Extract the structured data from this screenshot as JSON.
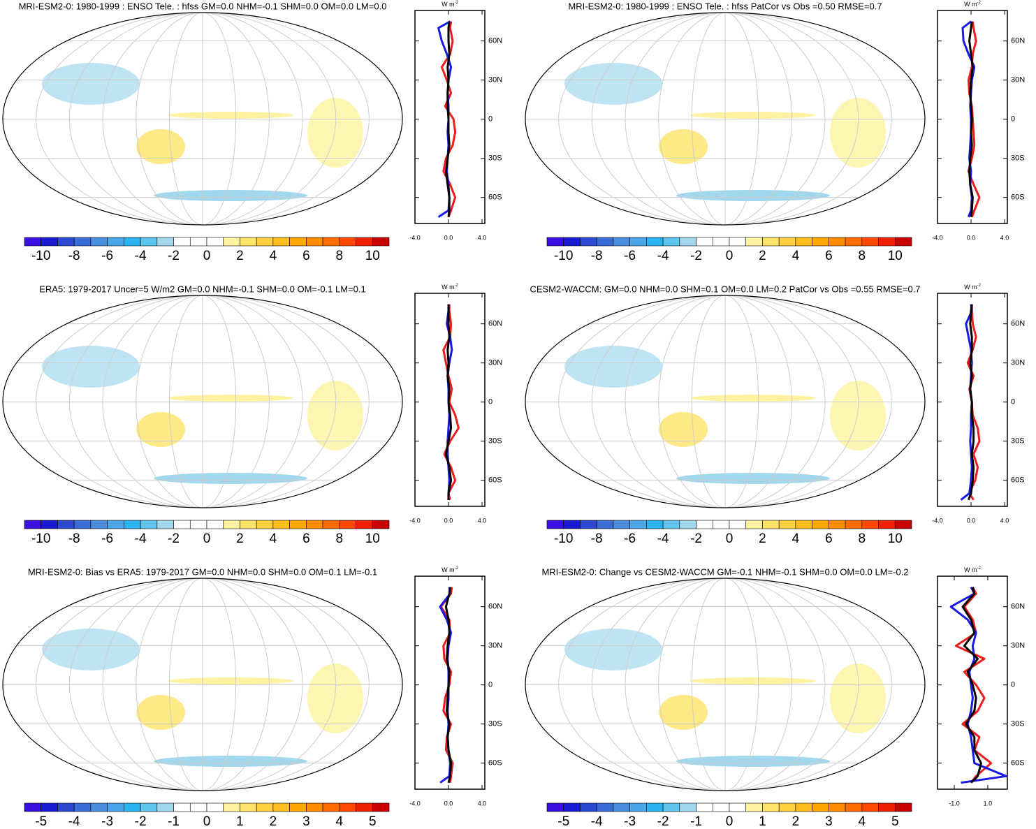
{
  "chart_data": [
    {
      "type": "map",
      "title": "MRI-ESM2-0: 1980-1999 : ENSO Tele. : hfss GM=0.0 NHM=-0.1 SHM=0.0 OM=0.0 LM=0.0",
      "colorbar": {
        "lim": [
          -11,
          11
        ],
        "ticks": [
          -10,
          -8,
          -6,
          -4,
          -2,
          0,
          2,
          4,
          6,
          8,
          10
        ]
      },
      "zonal": {
        "type": "line",
        "units": "W m",
        "units_exp": "-2",
        "xlim": [
          -4,
          4.33
        ],
        "ylim": [
          -80,
          83.4
        ],
        "xticks": [
          {
            "value": -4,
            "label": "-4.0"
          },
          {
            "value": 0,
            "label": "0.0"
          },
          {
            "value": 4,
            "label": "4.0"
          }
        ],
        "yticks": [
          {
            "value": 60,
            "label": "60N"
          },
          {
            "value": 30,
            "label": "30N"
          },
          {
            "value": 0,
            "label": "0"
          },
          {
            "value": -30,
            "label": "30S"
          },
          {
            "value": -60,
            "label": "60S"
          }
        ],
        "lat": [
          -75,
          -70,
          -60,
          -50,
          -40,
          -30,
          -20,
          -10,
          0,
          10,
          20,
          30,
          40,
          50,
          60,
          70,
          75
        ],
        "series": [
          {
            "color": "#ee1c1c",
            "values": [
              0,
              0.3,
              0.8,
              0.2,
              -0.6,
              -0.3,
              0.5,
              0.8,
              0.6,
              -0.4,
              0.3,
              -0.2,
              -0.8,
              0.2,
              0.5,
              0.2,
              0.3
            ]
          },
          {
            "color": "#1a1ae6",
            "values": [
              -1.2,
              0,
              0.1,
              0,
              -0.2,
              -0.1,
              0,
              -0.1,
              0,
              0,
              -0.1,
              0,
              0.3,
              -0.2,
              -0.8,
              -1.2,
              0.2
            ]
          },
          {
            "color": "#000000",
            "values": [
              0,
              0.1,
              0.1,
              -0.1,
              -0.3,
              -0.1,
              0.1,
              0,
              0,
              -0.1,
              -0.1,
              0,
              -0.1,
              0.1,
              0,
              0,
              0.1
            ]
          }
        ]
      }
    },
    {
      "type": "map",
      "title": "MRI-ESM2-0: 1980-1999 : ENSO Tele. : hfss PatCor vs Obs =0.50 RMSE=0.7",
      "colorbar": {
        "lim": [
          -11,
          11
        ],
        "ticks": [
          -10,
          -8,
          -6,
          -4,
          -2,
          0,
          2,
          4,
          6,
          8,
          10
        ]
      },
      "zonal": {
        "type": "line",
        "units": "W m",
        "units_exp": "-2",
        "xlim": [
          -4,
          4.33
        ],
        "ylim": [
          -80,
          83.4
        ],
        "xticks": [
          {
            "value": -4,
            "label": "-4.0"
          },
          {
            "value": 0,
            "label": "0.0"
          },
          {
            "value": 4,
            "label": "4.0"
          }
        ],
        "yticks": [
          {
            "value": 60,
            "label": "60N"
          },
          {
            "value": 30,
            "label": "30N"
          },
          {
            "value": 0,
            "label": "0"
          },
          {
            "value": -30,
            "label": "30S"
          },
          {
            "value": -60,
            "label": "60S"
          }
        ],
        "lat": [
          -75,
          -70,
          -60,
          -50,
          -40,
          -30,
          -20,
          -10,
          0,
          10,
          20,
          30,
          40,
          50,
          60,
          70,
          75
        ],
        "series": [
          {
            "color": "#ee1c1c",
            "values": [
              0.1,
              0.4,
              1.0,
              0.3,
              -0.3,
              0.1,
              0.4,
              0.3,
              0.2,
              0.1,
              -0.2,
              -0.3,
              0.1,
              0.2,
              0.6,
              0.3,
              0.2
            ]
          },
          {
            "color": "#1a1ae6",
            "values": [
              -0.3,
              0,
              0.1,
              -0.1,
              0,
              -0.2,
              -0.1,
              0,
              0,
              -0.1,
              0,
              0.1,
              0.4,
              -0.3,
              -0.9,
              -1.0,
              0
            ]
          },
          {
            "color": "#000000",
            "values": [
              0,
              0.1,
              0.2,
              -0.1,
              -0.2,
              -0.1,
              0.1,
              0,
              0.1,
              0,
              -0.1,
              0,
              0.2,
              0,
              -0.2,
              0,
              0.1
            ]
          }
        ]
      }
    },
    {
      "type": "map",
      "title": "ERA5: 1979-2017 Uncer=5 W/m2 GM=0.0 NHM=-0.1 SHM=0.0 OM=-0.1 LM=0.1",
      "colorbar": {
        "lim": [
          -11,
          11
        ],
        "ticks": [
          -10,
          -8,
          -6,
          -4,
          -2,
          0,
          2,
          4,
          6,
          8,
          10
        ]
      },
      "zonal": {
        "type": "line",
        "units": "W m",
        "units_exp": "-2",
        "xlim": [
          -4,
          4.33
        ],
        "ylim": [
          -80,
          83.4
        ],
        "xticks": [
          {
            "value": -4,
            "label": "-4.0"
          },
          {
            "value": 0,
            "label": "0.0"
          },
          {
            "value": 4,
            "label": "4.0"
          }
        ],
        "yticks": [
          {
            "value": 60,
            "label": "60N"
          },
          {
            "value": 30,
            "label": "30N"
          },
          {
            "value": 0,
            "label": "0"
          },
          {
            "value": -30,
            "label": "30S"
          },
          {
            "value": -60,
            "label": "60S"
          }
        ],
        "lat": [
          -75,
          -70,
          -60,
          -50,
          -40,
          -30,
          -20,
          -10,
          0,
          10,
          20,
          30,
          40,
          50,
          60,
          70,
          75
        ],
        "series": [
          {
            "color": "#ee1c1c",
            "values": [
              0.2,
              0,
              0.8,
              0.3,
              -0.5,
              0.2,
              1.2,
              0.8,
              0.1,
              0.4,
              0,
              -0.3,
              -0.6,
              0.2,
              0.3,
              0.1,
              0.1
            ]
          },
          {
            "color": "#1a1ae6",
            "values": [
              0,
              0,
              0.1,
              0,
              -0.1,
              -0.1,
              0,
              0.1,
              0,
              0,
              -0.1,
              0.1,
              0.4,
              0.2,
              -0.2,
              0,
              0
            ]
          },
          {
            "color": "#000000",
            "values": [
              0,
              0,
              0.3,
              0.1,
              -0.3,
              0,
              0.3,
              0.2,
              0,
              0.1,
              -0.1,
              0,
              -0.1,
              0.1,
              0,
              0,
              0
            ]
          }
        ]
      }
    },
    {
      "type": "map",
      "title": "CESM2-WACCM: GM=0.0 NHM=0.0 SHM=0.1 OM=0.0 LM=0.2 PatCor vs Obs =0.55 RMSE=0.7",
      "colorbar": {
        "lim": [
          -11,
          11
        ],
        "ticks": [
          -10,
          -8,
          -6,
          -4,
          -2,
          0,
          2,
          4,
          6,
          8,
          10
        ]
      },
      "zonal": {
        "type": "line",
        "units": "W m",
        "units_exp": "-2",
        "xlim": [
          -4,
          4.33
        ],
        "ylim": [
          -80,
          83.4
        ],
        "xticks": [
          {
            "value": -4,
            "label": "-4.0"
          },
          {
            "value": 0,
            "label": "0.0"
          },
          {
            "value": 4,
            "label": "4.0"
          }
        ],
        "yticks": [
          {
            "value": 60,
            "label": "60N"
          },
          {
            "value": 30,
            "label": "30N"
          },
          {
            "value": 0,
            "label": "0"
          },
          {
            "value": -30,
            "label": "30S"
          },
          {
            "value": -60,
            "label": "60S"
          }
        ],
        "lat": [
          -75,
          -70,
          -60,
          -50,
          -40,
          -30,
          -20,
          -10,
          0,
          10,
          20,
          30,
          40,
          50,
          60,
          70,
          75
        ],
        "series": [
          {
            "color": "#ee1c1c",
            "values": [
              0.3,
              -0.2,
              0.5,
              0.8,
              0.3,
              1.0,
              0.8,
              0.2,
              0.1,
              -0.2,
              0.3,
              -0.4,
              0.2,
              0.6,
              0.2,
              0.1,
              0.1
            ]
          },
          {
            "color": "#1a1ae6",
            "values": [
              -1.2,
              -0.2,
              0,
              0.1,
              0,
              -0.1,
              0,
              0,
              0.1,
              -0.1,
              0,
              0.1,
              0,
              -0.3,
              -0.6,
              0.1,
              0
            ]
          },
          {
            "color": "#000000",
            "values": [
              -0.3,
              0,
              0.2,
              0.3,
              0.1,
              0.3,
              0.3,
              0.1,
              0.1,
              -0.1,
              0.1,
              -0.1,
              0.1,
              0.1,
              -0.1,
              0,
              0.1
            ]
          }
        ]
      }
    },
    {
      "type": "map",
      "title": "MRI-ESM2-0: Bias vs ERA5: 1979-2017 GM=0.0 NHM=0.0 SHM=0.0 OM=0.1 LM=-0.1",
      "colorbar": {
        "lim": [
          -5.5,
          5.5
        ],
        "ticks": [
          -5,
          -4,
          -3,
          -2,
          -1,
          0,
          1,
          2,
          3,
          4,
          5
        ]
      },
      "zonal": {
        "type": "line",
        "units": "W m",
        "units_exp": "-2",
        "xlim": [
          -4,
          4.33
        ],
        "ylim": [
          -80,
          83.4
        ],
        "xticks": [
          {
            "value": -4,
            "label": "-4.0"
          },
          {
            "value": 0,
            "label": "0.0"
          },
          {
            "value": 4,
            "label": "4.0"
          }
        ],
        "yticks": [
          {
            "value": 60,
            "label": "60N"
          },
          {
            "value": 30,
            "label": "30N"
          },
          {
            "value": 0,
            "label": "0"
          },
          {
            "value": -30,
            "label": "30S"
          },
          {
            "value": -60,
            "label": "60S"
          }
        ],
        "lat": [
          -75,
          -70,
          -60,
          -50,
          -40,
          -30,
          -20,
          -10,
          0,
          10,
          20,
          30,
          40,
          50,
          60,
          70,
          75
        ],
        "series": [
          {
            "color": "#ee1c1c",
            "values": [
              0.2,
              0.3,
              0.5,
              -0.3,
              -0.2,
              0.3,
              -0.6,
              -0.4,
              0.1,
              0.3,
              -0.5,
              -0.6,
              0.2,
              0.1,
              -0.9,
              0.3,
              0.4
            ]
          },
          {
            "color": "#1a1ae6",
            "values": [
              -1.0,
              0.1,
              0.2,
              0,
              -0.1,
              0,
              -0.1,
              0,
              0,
              0,
              -0.1,
              0,
              0.3,
              -0.2,
              -1.0,
              0.2,
              0.1
            ]
          },
          {
            "color": "#000000",
            "values": [
              0,
              0.2,
              0.3,
              0,
              -0.1,
              0.1,
              -0.2,
              -0.1,
              0,
              0.1,
              -0.2,
              -0.1,
              0.1,
              0,
              -0.3,
              0.1,
              0.2
            ]
          }
        ]
      }
    },
    {
      "type": "map",
      "title": "MRI-ESM2-0: Change vs CESM2-WACCM GM=-0.1 NHM=-0.1 SHM=0.0 OM=0.0 LM=-0.2",
      "colorbar": {
        "lim": [
          -5.5,
          5.5
        ],
        "ticks": [
          -5,
          -4,
          -3,
          -2,
          -1,
          0,
          1,
          2,
          3,
          4,
          5
        ]
      },
      "zonal": {
        "type": "line",
        "units": "W m",
        "units_exp": "-2",
        "xlim": [
          -2,
          2.17
        ],
        "ylim": [
          -80,
          83.4
        ],
        "xticks": [
          {
            "value": -1,
            "label": "-1.0"
          },
          {
            "value": 1,
            "label": "1.0"
          }
        ],
        "yticks": [
          {
            "value": 60,
            "label": "60N"
          },
          {
            "value": 30,
            "label": "30N"
          },
          {
            "value": 0,
            "label": "0"
          },
          {
            "value": -30,
            "label": "30S"
          },
          {
            "value": -60,
            "label": "60S"
          }
        ],
        "lat": [
          -75,
          -70,
          -60,
          -50,
          -40,
          -30,
          -20,
          -10,
          0,
          10,
          20,
          30,
          40,
          50,
          60,
          70,
          75
        ],
        "series": [
          {
            "color": "#ee1c1c",
            "values": [
              0,
              0.3,
              1.2,
              0.2,
              0.5,
              -0.5,
              0.4,
              0.8,
              0.3,
              -0.4,
              0.8,
              -0.9,
              0.3,
              0.1,
              -0.4,
              0.3,
              0.1
            ]
          },
          {
            "color": "#1a1ae6",
            "values": [
              -0.6,
              2.1,
              0.2,
              0.1,
              0,
              -0.2,
              0,
              0.1,
              0,
              -0.1,
              0.2,
              0.1,
              0.3,
              -0.2,
              -1.2,
              0.2,
              0
            ]
          },
          {
            "color": "#000000",
            "values": [
              0,
              0.4,
              0.6,
              0.2,
              0.2,
              -0.3,
              0.2,
              0.3,
              0.1,
              -0.2,
              0.4,
              -0.4,
              0.2,
              0,
              -0.5,
              0.2,
              0.1
            ]
          }
        ]
      }
    }
  ],
  "colorbar_colors": [
    "#3a10e0",
    "#1a1ad2",
    "#2c48d0",
    "#3a6cd8",
    "#4a8ee0",
    "#4aa6e8",
    "#2cb4f0",
    "#5ec6ee",
    "#a2d8ee",
    "#ffffff",
    "#ffffff",
    "#ffffff",
    "#fff2a0",
    "#ffe268",
    "#ffd040",
    "#ffbe20",
    "#ffa600",
    "#ff8c00",
    "#ff6c00",
    "#ff4800",
    "#ee2000",
    "#c80000"
  ]
}
